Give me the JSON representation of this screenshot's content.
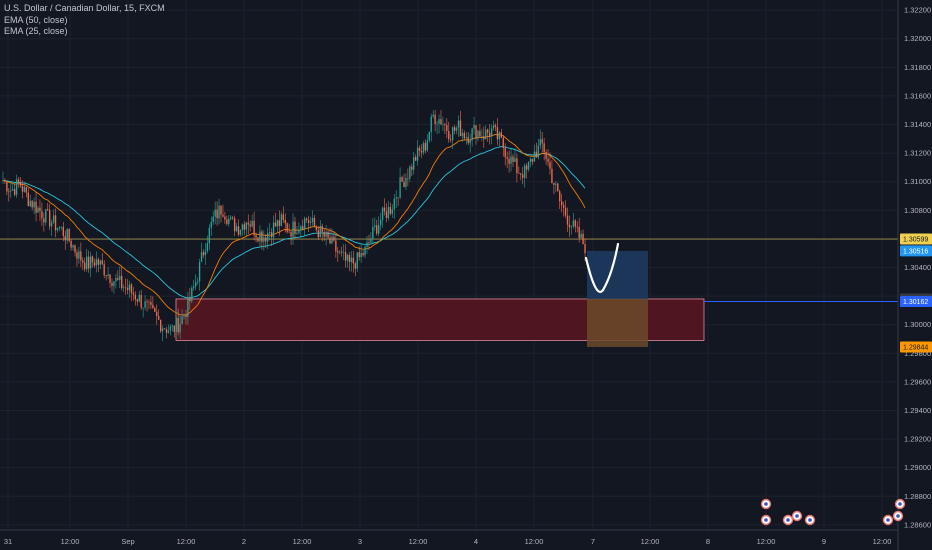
{
  "legend": {
    "symbol": "U.S. Dollar / Canadian Dollar, 15, FXCM",
    "ema50": "EMA (50, close)",
    "ema25": "EMA (25, close)"
  },
  "colors": {
    "background": "#131722",
    "up": "#26a69a",
    "down": "#ef6c4f",
    "ema50": "#26c6da",
    "ema25": "#f57c00",
    "zone_fill": "#5a1520",
    "zone_border": "#e08a9a",
    "target": "#1e3a5f",
    "stop": "#6b4a2a",
    "price_line": "#c8b25a",
    "alert_line": "#2962ff",
    "sketch": "#ffffff"
  },
  "chart_data": {
    "type": "candlestick",
    "symbol": "USDCAD",
    "timeframe": "15",
    "x_ticks": [
      "31",
      "12:00",
      "Sep",
      "12:00",
      "2",
      "12:00",
      "3",
      "12:00",
      "4",
      "12:00",
      "7",
      "12:00",
      "8",
      "12:00",
      "9",
      "12:00"
    ],
    "y_ticks": [
      "1.32200",
      "1.32000",
      "1.31800",
      "1.31600",
      "1.31400",
      "1.31200",
      "1.31000",
      "1.30800",
      "1.30600",
      "1.30400",
      "1.30200",
      "1.30000",
      "1.29800",
      "1.29600",
      "1.29400",
      "1.29200",
      "1.29000",
      "1.28800",
      "1.28600"
    ],
    "ylim": [
      1.2855,
      1.3225
    ],
    "price_tags": [
      {
        "label": "1.30599",
        "value": 1.30599,
        "bg": "#f0d050",
        "fg": "#131722"
      },
      {
        "label": "1.30516",
        "value": 1.30516,
        "bg": "#2196f3",
        "fg": "#ffffff"
      },
      {
        "label": "1.30180",
        "value": 1.3018,
        "bg": "#363a45",
        "fg": "#d1d4dc"
      },
      {
        "label": "1.30162",
        "value": 1.30162,
        "bg": "#2962ff",
        "fg": "#ffffff"
      },
      {
        "label": "1.29844",
        "value": 1.29844,
        "bg": "#ff9800",
        "fg": "#131722"
      }
    ],
    "current_price": 1.30599,
    "alert_price": 1.30162,
    "demand_zone": {
      "top": 1.3018,
      "bottom": 1.2989
    },
    "position_entry": 1.3018,
    "position_target": 1.30516,
    "position_stop": 1.29844,
    "price_path": [
      1.3101,
      1.3094,
      1.3099,
      1.3088,
      1.3082,
      1.3076,
      1.3071,
      1.3066,
      1.3058,
      1.3048,
      1.3042,
      1.3045,
      1.3039,
      1.3032,
      1.3028,
      1.3024,
      1.3019,
      1.3012,
      1.3006,
      1.2999,
      1.2996,
      1.3002,
      1.3014,
      1.3033,
      1.3057,
      1.3075,
      1.3082,
      1.3071,
      1.3068,
      1.3074,
      1.3065,
      1.3062,
      1.3068,
      1.3072,
      1.3066,
      1.307,
      1.3074,
      1.3068,
      1.3062,
      1.3056,
      1.3048,
      1.3042,
      1.3045,
      1.3052,
      1.3066,
      1.3076,
      1.3082,
      1.3097,
      1.3106,
      1.3118,
      1.3124,
      1.3146,
      1.3143,
      1.3134,
      1.3138,
      1.3132,
      1.3136,
      1.3133,
      1.3136,
      1.3128,
      1.3117,
      1.3108,
      1.3106,
      1.312,
      1.3126,
      1.3105,
      1.3086,
      1.3074,
      1.3064,
      1.3055
    ]
  }
}
